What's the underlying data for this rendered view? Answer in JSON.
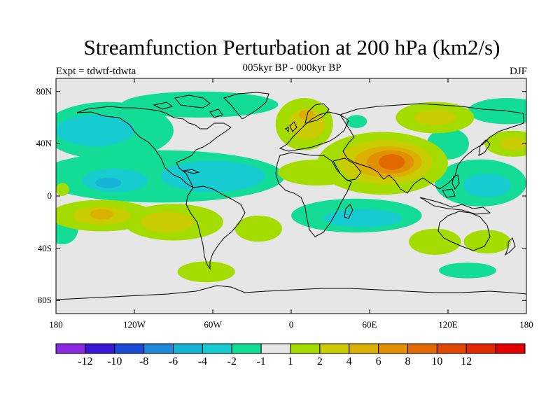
{
  "title": "Streamfunction Perturbation at 200 hPa (km2/s)",
  "subtitle": "005kyr BP - 000kyr BP",
  "experiment_label": "Expt = tdwtf-tdwta",
  "season_label": "DJF",
  "map": {
    "projection": "cylindrical-equidistant",
    "lon_range": [
      -180,
      180
    ],
    "lat_range": [
      -90,
      90
    ],
    "background_color": "#e6e6e6",
    "lat_ticks": [
      {
        "value": 80,
        "label": "80N"
      },
      {
        "value": 40,
        "label": "40N"
      },
      {
        "value": 0,
        "label": "0"
      },
      {
        "value": -40,
        "label": "40S"
      },
      {
        "value": -80,
        "label": "80S"
      }
    ],
    "lon_ticks": [
      {
        "value": -180,
        "label": "180"
      },
      {
        "value": -120,
        "label": "120W"
      },
      {
        "value": -60,
        "label": "60W"
      },
      {
        "value": 0,
        "label": "0"
      },
      {
        "value": 60,
        "label": "60E"
      },
      {
        "value": 120,
        "label": "120E"
      },
      {
        "value": 180,
        "label": "180"
      }
    ]
  },
  "colorbar": {
    "colors": [
      "#8a2be2",
      "#3a18d6",
      "#1a4cd8",
      "#1f88d9",
      "#17b3d4",
      "#16ccd0",
      "#12dc96",
      "#e6e6e6",
      "#a4dc00",
      "#c8cc00",
      "#dcb000",
      "#e09000",
      "#e06a00",
      "#e04800",
      "#e02800",
      "#e00000"
    ],
    "labels": [
      "-12",
      "-10",
      "-8",
      "-6",
      "-4",
      "-2",
      "-1",
      "1",
      "2",
      "4",
      "6",
      "8",
      "10",
      "12"
    ]
  },
  "fields": {
    "positive": [
      {
        "name": "south-pacific-high",
        "lon": -145,
        "lat": -15,
        "rlon": 40,
        "rlat": 12,
        "level": 1
      },
      {
        "name": "south-pacific-high-core",
        "lon": -145,
        "lat": -15,
        "rlon": 22,
        "rlat": 7,
        "level": 2
      },
      {
        "name": "south-pacific-high-center",
        "lon": -145,
        "lat": -14,
        "rlon": 9,
        "rlat": 4,
        "level": 3
      },
      {
        "name": "south-america-high",
        "lon": -90,
        "lat": -20,
        "rlon": 38,
        "rlat": 14,
        "level": 1
      },
      {
        "name": "south-america-high-core",
        "lon": -95,
        "lat": -20,
        "rlon": 20,
        "rlat": 8,
        "level": 2
      },
      {
        "name": "south-atlantic-high",
        "lon": -25,
        "lat": -25,
        "rlon": 18,
        "rlat": 10,
        "level": 1
      },
      {
        "name": "europe-high",
        "lon": 10,
        "lat": 55,
        "rlon": 22,
        "rlat": 20,
        "level": 1
      },
      {
        "name": "europe-high-core",
        "lon": 12,
        "lat": 55,
        "rlon": 14,
        "rlat": 12,
        "level": 2
      },
      {
        "name": "europe-high-center",
        "lon": 12,
        "lat": 62,
        "rlon": 6,
        "rlat": 4,
        "level": 3
      },
      {
        "name": "africa-ridge",
        "lon": 20,
        "lat": 18,
        "rlon": 30,
        "rlat": 10,
        "level": 1
      },
      {
        "name": "tibet-high",
        "lon": 70,
        "lat": 25,
        "rlon": 50,
        "rlat": 24,
        "level": 1
      },
      {
        "name": "tibet-high-2",
        "lon": 72,
        "lat": 26,
        "rlon": 36,
        "rlat": 17,
        "level": 2
      },
      {
        "name": "tibet-high-3",
        "lon": 74,
        "lat": 26,
        "rlon": 26,
        "rlat": 12,
        "level": 3
      },
      {
        "name": "tibet-high-4",
        "lon": 76,
        "lat": 26,
        "rlon": 18,
        "rlat": 9,
        "level": 4
      },
      {
        "name": "tibet-high-5",
        "lon": 77,
        "lat": 26,
        "rlon": 10,
        "rlat": 6,
        "level": 5
      },
      {
        "name": "siberia-high",
        "lon": 110,
        "lat": 60,
        "rlon": 30,
        "rlat": 12,
        "level": 1
      },
      {
        "name": "siberia-high-core",
        "lon": 110,
        "lat": 60,
        "rlon": 16,
        "rlat": 6,
        "level": 2
      },
      {
        "name": "north-pacific-high",
        "lon": 170,
        "lat": 40,
        "rlon": 22,
        "rlat": 10,
        "level": 1
      },
      {
        "name": "north-pacific-high-core",
        "lon": 170,
        "lat": 40,
        "rlon": 10,
        "rlat": 5,
        "level": 2
      },
      {
        "name": "australia-high",
        "lon": 110,
        "lat": -35,
        "rlon": 20,
        "rlat": 10,
        "level": 1
      },
      {
        "name": "new-zealand-high",
        "lon": 150,
        "lat": -35,
        "rlon": 18,
        "rlat": 9,
        "level": 1
      },
      {
        "name": "southern-ocean-high",
        "lon": -65,
        "lat": -58,
        "rlon": 22,
        "rlat": 8,
        "level": 1
      },
      {
        "name": "north-pacific-east-high",
        "lon": -175,
        "lat": 5,
        "rlon": 5,
        "rlat": 5,
        "level": 1
      }
    ],
    "negative": [
      {
        "name": "north-pacific-low",
        "lon": -140,
        "lat": 50,
        "rlon": 50,
        "rlat": 22,
        "level": 1
      },
      {
        "name": "north-pacific-low-core",
        "lon": -150,
        "lat": 50,
        "rlon": 30,
        "rlat": 12,
        "level": 2
      },
      {
        "name": "tropical-atlantic-low",
        "lon": -100,
        "lat": 15,
        "rlon": 95,
        "rlat": 20,
        "level": 1
      },
      {
        "name": "tropical-atlantic-low-core",
        "lon": -60,
        "lat": 15,
        "rlon": 40,
        "rlat": 12,
        "level": 2
      },
      {
        "name": "tropical-pacific-low-core",
        "lon": -135,
        "lat": 12,
        "rlon": 25,
        "rlat": 9,
        "level": 2
      },
      {
        "name": "tropical-low-center",
        "lon": -140,
        "lat": 10,
        "rlon": 10,
        "rlat": 4,
        "level": 3
      },
      {
        "name": "arctic-atlantic-low",
        "lon": -70,
        "lat": 70,
        "rlon": 60,
        "rlat": 10,
        "level": 1
      },
      {
        "name": "southern-africa-low",
        "lon": 50,
        "lat": -15,
        "rlon": 50,
        "rlat": 13,
        "level": 1
      },
      {
        "name": "southern-africa-low-core",
        "lon": 55,
        "lat": -17,
        "rlon": 30,
        "rlat": 7,
        "level": 2
      },
      {
        "name": "west-pacific-low",
        "lon": 145,
        "lat": 10,
        "rlon": 35,
        "rlat": 18,
        "level": 1
      },
      {
        "name": "west-pacific-low-core",
        "lon": 150,
        "lat": 8,
        "rlon": 18,
        "rlat": 9,
        "level": 2
      },
      {
        "name": "north-pacific-ne-low",
        "lon": 165,
        "lat": 65,
        "rlon": 30,
        "rlat": 10,
        "level": 1
      },
      {
        "name": "southeast-pacific-low",
        "lon": -175,
        "lat": -25,
        "rlon": 12,
        "rlat": 12,
        "level": 1
      },
      {
        "name": "southern-ocean-low",
        "lon": 135,
        "lat": -57,
        "rlon": 22,
        "rlat": 6,
        "level": 1
      },
      {
        "name": "north-atlantic-small-low",
        "lon": 50,
        "lat": 57,
        "rlon": 8,
        "rlat": 5,
        "level": 1
      },
      {
        "name": "central-asia-low",
        "lon": 120,
        "lat": 40,
        "rlon": 16,
        "rlat": 12,
        "level": 1
      }
    ]
  }
}
